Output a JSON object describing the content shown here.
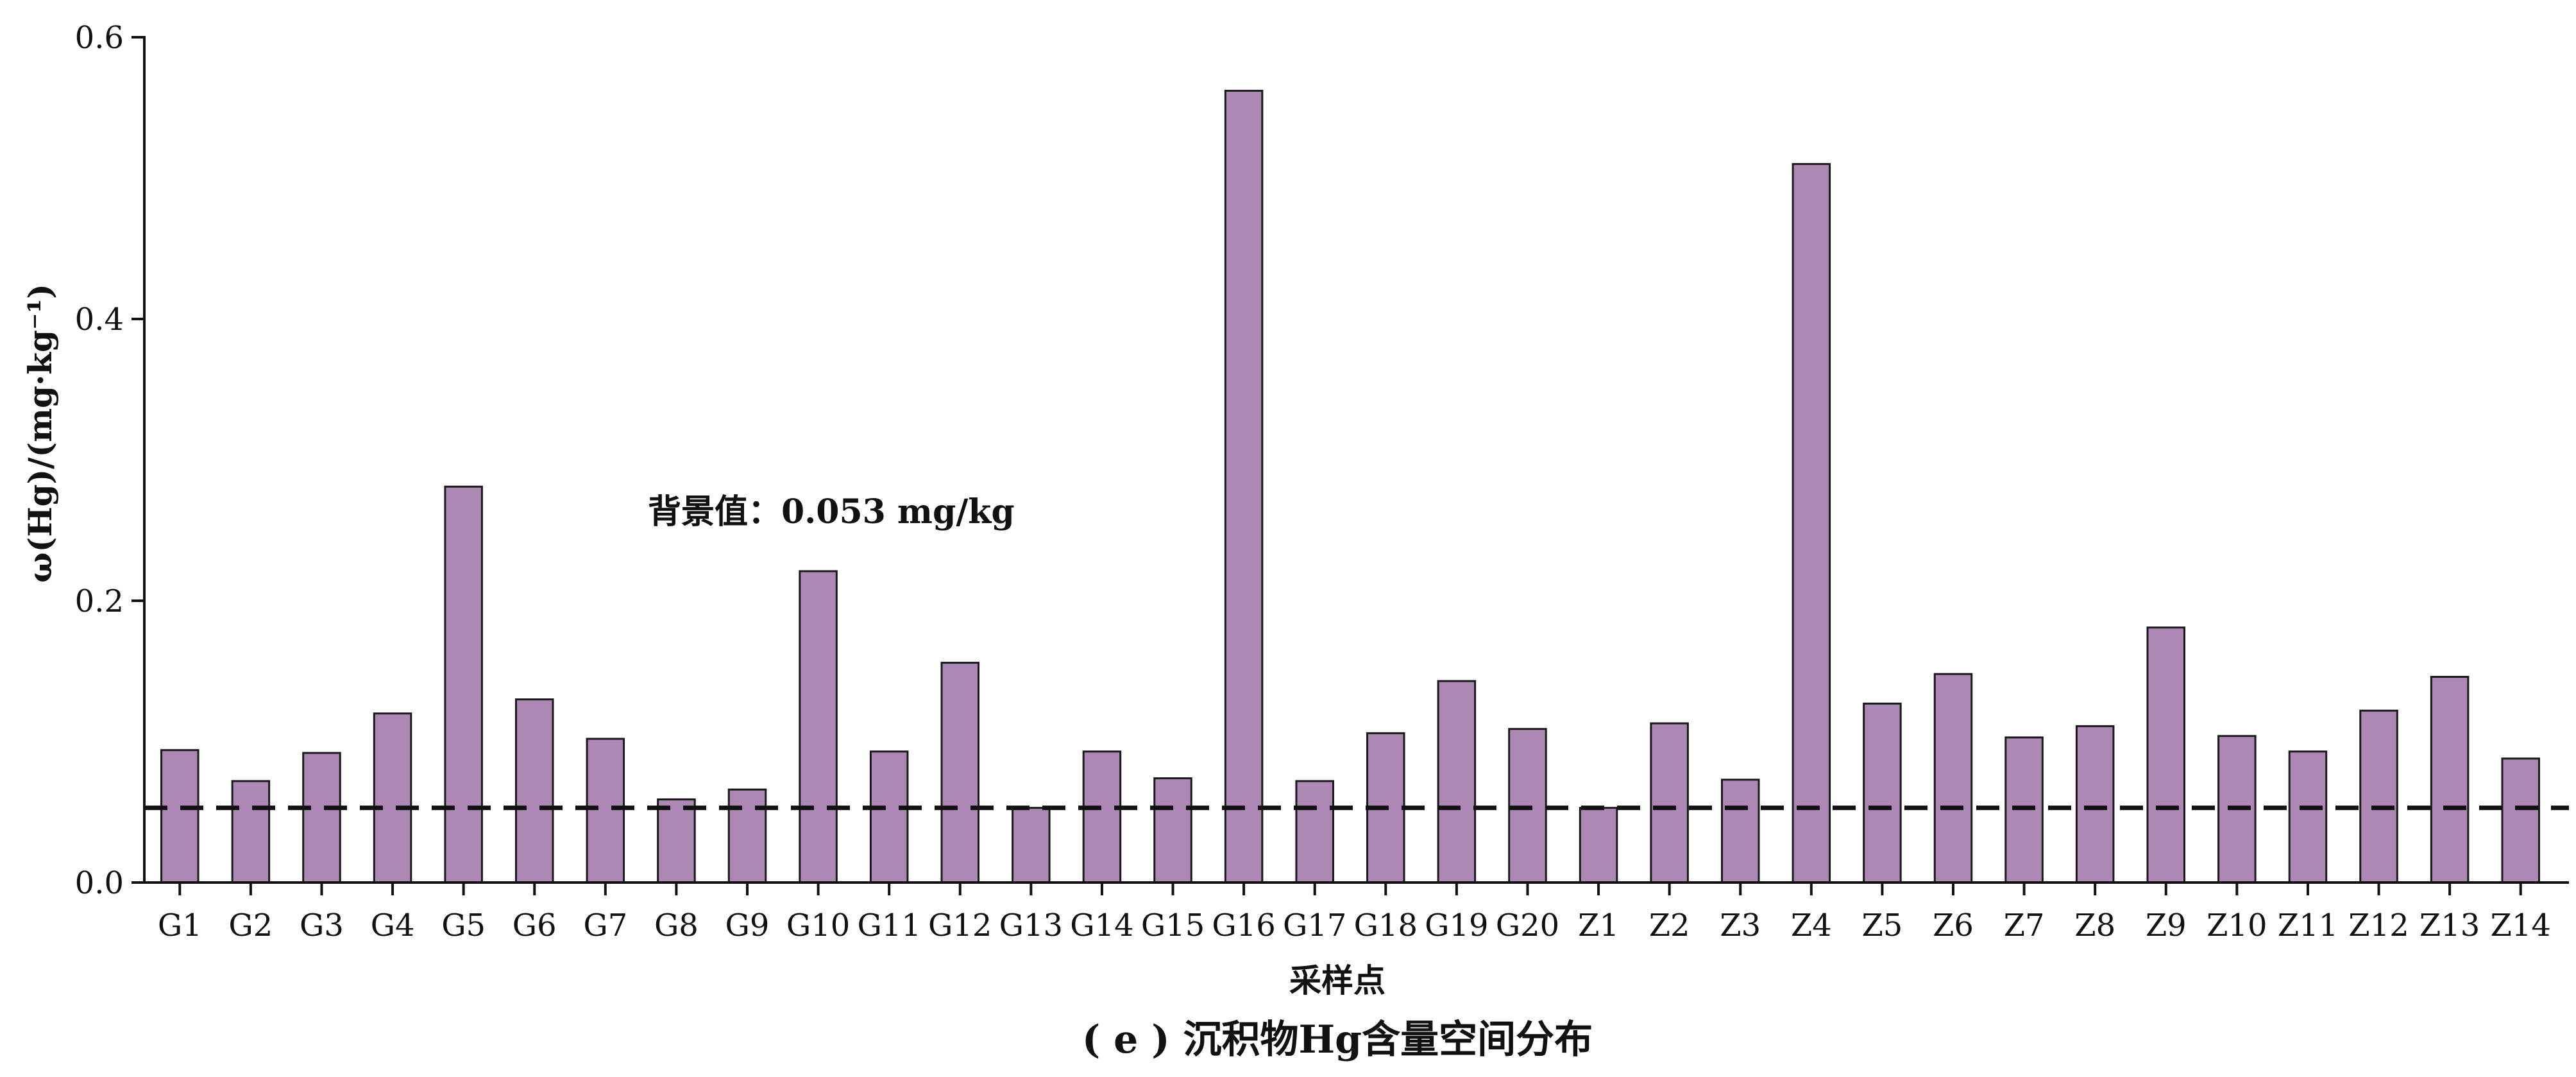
{
  "chart_data": {
    "type": "bar",
    "caption": "( e ) 沉积物Hg含量空间分布",
    "xlabel": "采样点",
    "ylabel": "ω(Hg)/(mg·kg⁻¹)",
    "ylim": [
      0,
      0.6
    ],
    "yticks": [
      "0.0",
      "0.2",
      "0.4",
      "0.6"
    ],
    "categories": [
      "G1",
      "G2",
      "G3",
      "G4",
      "G5",
      "G6",
      "G7",
      "G8",
      "G9",
      "G10",
      "G11",
      "G12",
      "G13",
      "G14",
      "G15",
      "G16",
      "G17",
      "G18",
      "G19",
      "G20",
      "Z1",
      "Z2",
      "Z3",
      "Z4",
      "Z5",
      "Z6",
      "Z7",
      "Z8",
      "Z9",
      "Z10",
      "Z11",
      "Z12",
      "Z13",
      "Z14"
    ],
    "values": [
      0.094,
      0.072,
      0.092,
      0.12,
      0.281,
      0.13,
      0.102,
      0.059,
      0.066,
      0.221,
      0.093,
      0.156,
      0.053,
      0.093,
      0.074,
      0.562,
      0.072,
      0.106,
      0.143,
      0.109,
      0.053,
      0.113,
      0.073,
      0.51,
      0.127,
      0.148,
      0.103,
      0.111,
      0.181,
      0.104,
      0.093,
      0.122,
      0.146,
      0.088
    ],
    "reference_line": {
      "value": 0.053,
      "style": "dashed",
      "label": "背景值：0.053 mg/kg"
    },
    "bar_color": "#ae88b4",
    "bar_edge_color": "#1a1a1a",
    "legend": "none",
    "grid": false
  }
}
